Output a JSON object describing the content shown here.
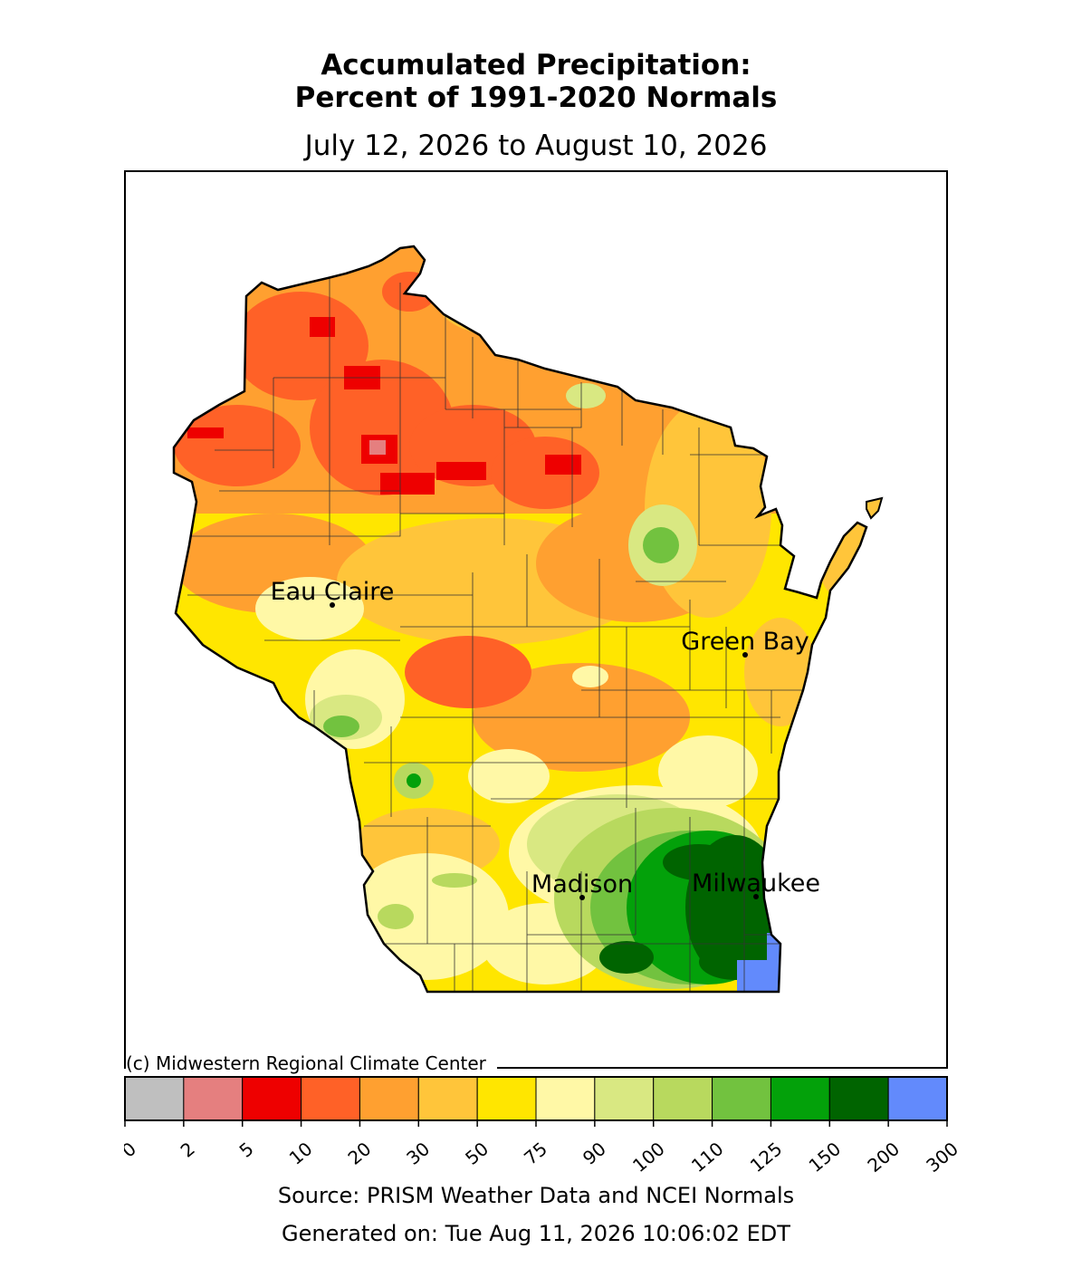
{
  "title_line1": "Accumulated Precipitation:",
  "title_line2": "Percent of 1991-2020 Normals",
  "date_range": "July 12, 2026 to August 10, 2026",
  "credit": "(c) Midwestern Regional Climate Center",
  "source": "Source: PRISM Weather Data and NCEI Normals",
  "generated": "Generated on: Tue Aug 11, 2026 10:06:02 EDT",
  "map": {
    "region": "Wisconsin",
    "cities": [
      {
        "name": "Eau Claire"
      },
      {
        "name": "Green Bay"
      },
      {
        "name": "Madison"
      },
      {
        "name": "Milwaukee"
      }
    ]
  },
  "legend": {
    "bins": [
      {
        "color": "#bfbfbf"
      },
      {
        "color": "#e57f7f"
      },
      {
        "color": "#ee0000"
      },
      {
        "color": "#ff6127"
      },
      {
        "color": "#ffa030"
      },
      {
        "color": "#ffc53a"
      },
      {
        "color": "#ffe600"
      },
      {
        "color": "#fff8a6"
      },
      {
        "color": "#d9e882"
      },
      {
        "color": "#b8d95e"
      },
      {
        "color": "#72c23f"
      },
      {
        "color": "#03a10a"
      },
      {
        "color": "#006400"
      },
      {
        "color": "#628afc"
      }
    ],
    "ticks": [
      "0",
      "2",
      "5",
      "10",
      "20",
      "30",
      "50",
      "75",
      "90",
      "100",
      "110",
      "125",
      "150",
      "200",
      "300"
    ]
  }
}
